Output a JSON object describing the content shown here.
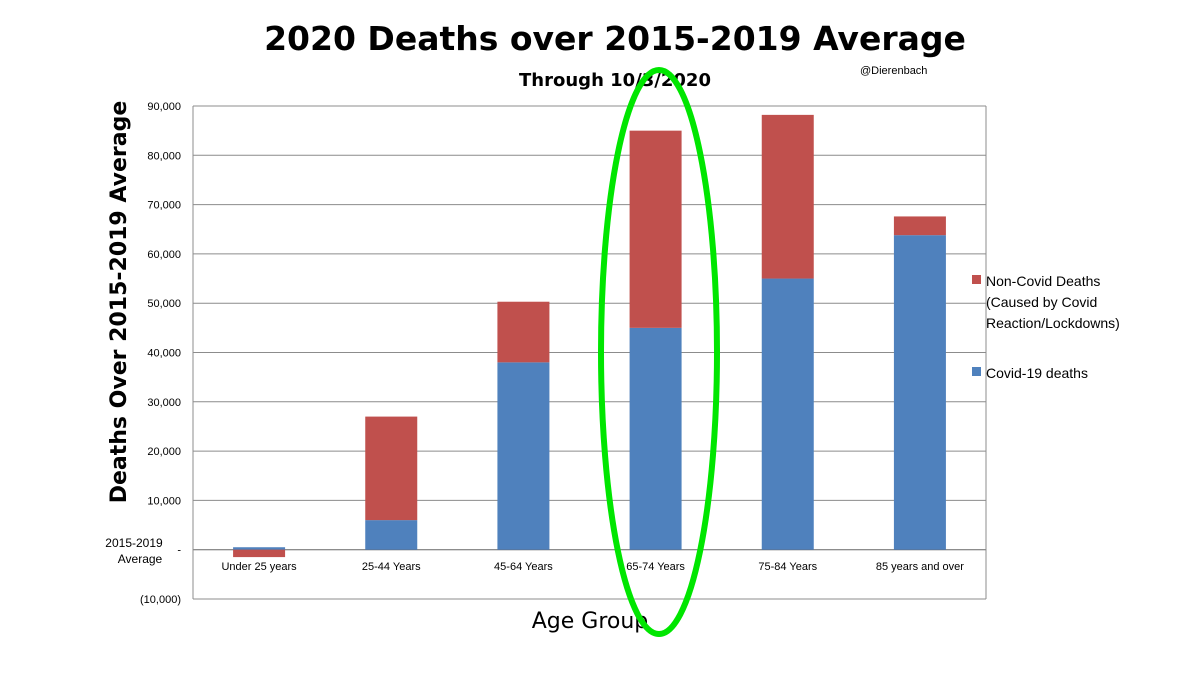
{
  "chart_data": {
    "type": "bar",
    "stacked": true,
    "title": "2020 Deaths over 2015-2019 Average",
    "subtitle": "Through 10/3/2020",
    "credit": "@Dierenbach",
    "xlabel": "Age Group",
    "ylabel": "Deaths Over 2015-2019 Average",
    "ylim": [
      -10000,
      90000
    ],
    "yticks": [
      {
        "value": 90000,
        "label": "90,000"
      },
      {
        "value": 80000,
        "label": "80,000"
      },
      {
        "value": 70000,
        "label": "70,000"
      },
      {
        "value": 60000,
        "label": "60,000"
      },
      {
        "value": 50000,
        "label": "50,000"
      },
      {
        "value": 40000,
        "label": "40,000"
      },
      {
        "value": 30000,
        "label": "30,000"
      },
      {
        "value": 20000,
        "label": "20,000"
      },
      {
        "value": 10000,
        "label": "10,000"
      },
      {
        "value": 0,
        "label": "-"
      },
      {
        "value": -10000,
        "label": "(10,000)"
      }
    ],
    "baseline_label": [
      "2015-2019",
      "Average"
    ],
    "grid": true,
    "legend_position": "right",
    "categories": [
      "Under 25 years",
      "25-44 Years",
      "45-64 Years",
      "65-74 Years",
      "75-84 Years",
      "85 years and over"
    ],
    "series": [
      {
        "name": "Covid-19 deaths",
        "color": "#4f81bd",
        "values": [
          500,
          6000,
          38000,
          45000,
          55000,
          63800
        ]
      },
      {
        "name": "Non-Covid Deaths (Caused by Covid Reaction/Lockdowns)",
        "legend_lines": [
          "Non-Covid Deaths",
          "(Caused by Covid",
          "Reaction/Lockdowns)"
        ],
        "color": "#c0504d",
        "values": [
          -1500,
          21000,
          12300,
          40000,
          33200,
          3800
        ]
      }
    ],
    "highlight": {
      "category": "65-74 Years",
      "shape": "ellipse",
      "color": "#00e600"
    }
  }
}
